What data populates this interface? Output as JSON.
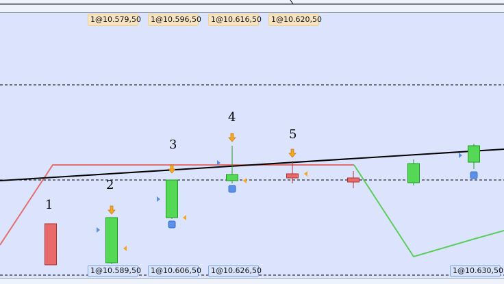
{
  "colors": {
    "background": "#dbe4fc",
    "bull": "#55d855",
    "bear": "#e86a6a",
    "trend": "#000000",
    "signal_red": "#e07070",
    "signal_green": "#5ccc5c",
    "arrow": "#f5a623",
    "marker_blue": "#5b8fe8"
  },
  "sell_tags": [
    "1@10.579,50",
    "1@10.596,50",
    "1@10.616,50",
    "1@10.620,50"
  ],
  "buy_tags": [
    "1@10.589,50",
    "1@10.606,50",
    "1@10.626,50",
    "1@10.630,50"
  ],
  "wave_labels": [
    "1",
    "2",
    "3",
    "4",
    "5"
  ]
}
